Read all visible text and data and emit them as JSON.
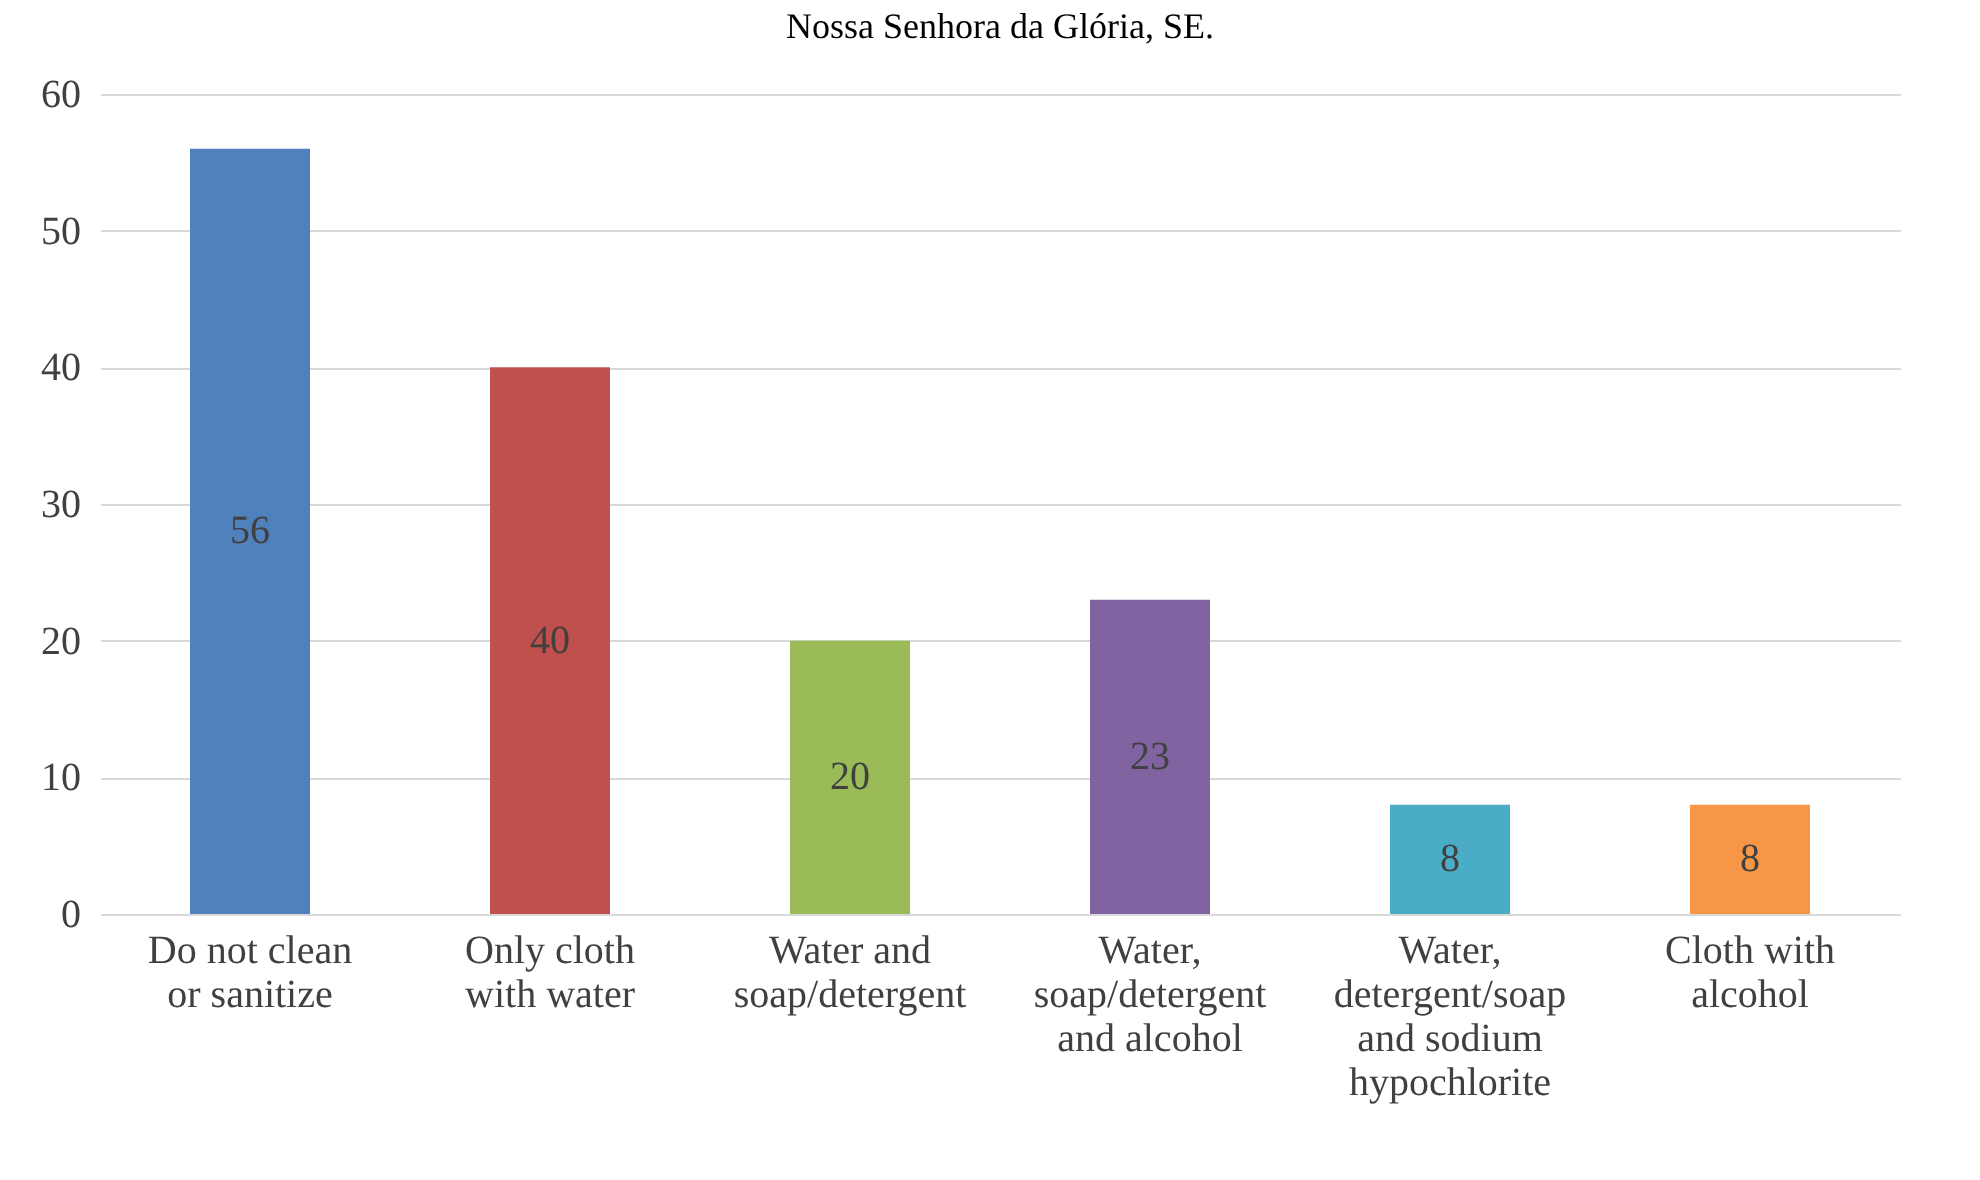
{
  "chart_data": {
    "type": "bar",
    "title": "Nossa Senhora da Glória, SE.",
    "categories": [
      "Do not clean or sanitize",
      "Only cloth with water",
      "Water and soap/detergent",
      "Water, soap/detergent and alcohol",
      "Water, detergent/soap and sodium hypochlorite",
      "Cloth with alcohol"
    ],
    "values": [
      56,
      40,
      20,
      23,
      8,
      8
    ],
    "colors": [
      "#4f81bd",
      "#c0504d",
      "#9bbb59",
      "#8064a2",
      "#4bacc6",
      "#f79646"
    ],
    "ylim": [
      0,
      60
    ],
    "yticks": [
      0,
      10,
      20,
      30,
      40,
      50,
      60
    ],
    "grid": "y",
    "data_labels": true
  }
}
